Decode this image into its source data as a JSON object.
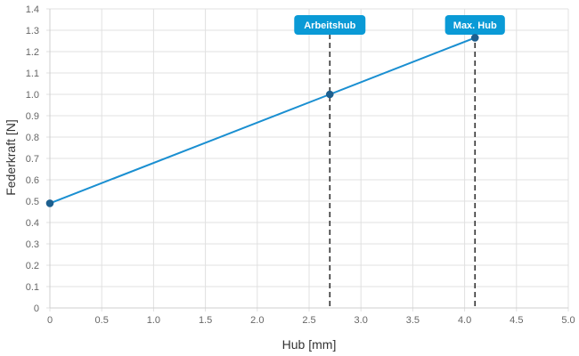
{
  "chart_data": {
    "type": "line",
    "xlabel": "Hub [mm]",
    "ylabel": "Federkraft [N]",
    "xlim": [
      0,
      5
    ],
    "ylim": [
      0,
      1.4
    ],
    "grid": true,
    "x_ticks": [
      "0",
      "0.5",
      "1.0",
      "1.5",
      "2.0",
      "2.5",
      "3.0",
      "3.5",
      "4.0",
      "4.5",
      "5.0"
    ],
    "y_ticks": [
      "0",
      "0.1",
      "0.2",
      "0.3",
      "0.4",
      "0.5",
      "0.6",
      "0.7",
      "0.8",
      "0.9",
      "1.0",
      "1.1",
      "1.2",
      "1.3",
      "1.4"
    ],
    "series": [
      {
        "color": "#1a8fd1",
        "points": [
          [
            0,
            0.49
          ],
          [
            2.7,
            1.0
          ],
          [
            4.1,
            1.265
          ]
        ]
      }
    ],
    "annotations": [
      {
        "label": "Arbeitshub",
        "x": 2.7,
        "color": "#0a9ad6"
      },
      {
        "label": "Max. Hub",
        "x": 4.1,
        "color": "#0a9ad6"
      }
    ]
  }
}
